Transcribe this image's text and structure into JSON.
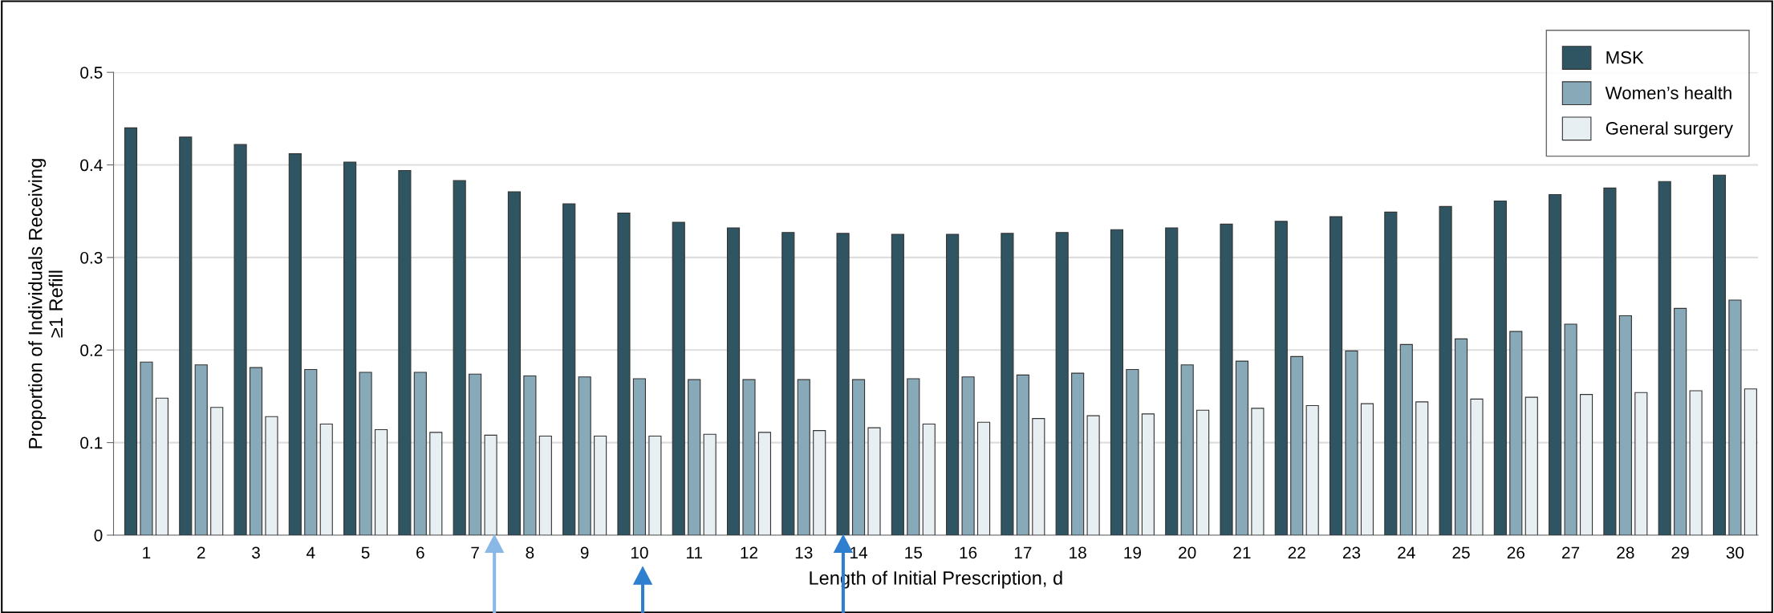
{
  "chart_data": {
    "type": "bar",
    "xlabel": "Length of Initial Prescription, d",
    "ylabel": "Proportion of Individuals Receiving\n≥1 Refill",
    "categories": [
      "1",
      "2",
      "3",
      "4",
      "5",
      "6",
      "7",
      "8",
      "9",
      "10",
      "11",
      "12",
      "13",
      "14",
      "15",
      "16",
      "17",
      "18",
      "19",
      "20",
      "21",
      "22",
      "23",
      "24",
      "25",
      "26",
      "27",
      "28",
      "29",
      "30"
    ],
    "series": [
      {
        "name": "MSK",
        "color": "#2f5562",
        "values": [
          0.44,
          0.43,
          0.422,
          0.412,
          0.403,
          0.394,
          0.383,
          0.371,
          0.358,
          0.348,
          0.338,
          0.332,
          0.327,
          0.326,
          0.325,
          0.325,
          0.326,
          0.327,
          0.33,
          0.332,
          0.336,
          0.339,
          0.344,
          0.349,
          0.355,
          0.361,
          0.368,
          0.375,
          0.382,
          0.389
        ]
      },
      {
        "name": "Women’s health",
        "color": "#87a9b8",
        "values": [
          0.187,
          0.184,
          0.181,
          0.179,
          0.176,
          0.176,
          0.174,
          0.172,
          0.171,
          0.169,
          0.168,
          0.168,
          0.168,
          0.168,
          0.169,
          0.171,
          0.173,
          0.175,
          0.179,
          0.184,
          0.188,
          0.193,
          0.199,
          0.206,
          0.212,
          0.22,
          0.228,
          0.237,
          0.245,
          0.254
        ]
      },
      {
        "name": "General surgery",
        "color": "#e8eff3",
        "values": [
          0.148,
          0.138,
          0.128,
          0.12,
          0.114,
          0.111,
          0.108,
          0.107,
          0.107,
          0.107,
          0.109,
          0.111,
          0.113,
          0.116,
          0.12,
          0.122,
          0.126,
          0.129,
          0.131,
          0.135,
          0.137,
          0.14,
          0.142,
          0.144,
          0.147,
          0.149,
          0.152,
          0.154,
          0.156,
          0.158
        ]
      }
    ],
    "ylim": [
      0,
      0.5
    ],
    "yticks": [
      {
        "value": 0,
        "label": "0"
      },
      0.1,
      0.2,
      0.3,
      0.4,
      0.5
    ],
    "grid": "y",
    "legend": "top right"
  }
}
